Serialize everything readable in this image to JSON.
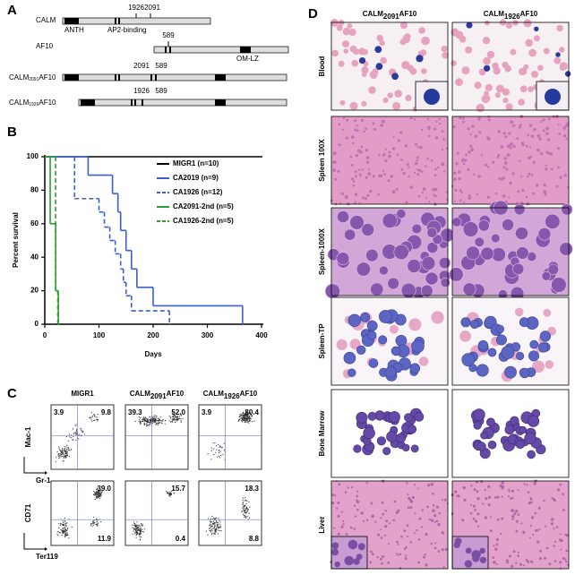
{
  "panel_a": {
    "label": "A",
    "calm": {
      "name": "CALM",
      "domains": [
        "ANTH",
        "AP2-binding"
      ],
      "breakpoints": [
        "1926",
        "2091"
      ]
    },
    "af10": {
      "name": "AF10",
      "breakpoint": "589",
      "domain": "OM-LZ"
    },
    "fusions": [
      {
        "name": {
          "base": "CALM",
          "sub": "2091",
          "tail": "AF10"
        },
        "breakpoints": [
          "2091",
          "589"
        ]
      },
      {
        "name": {
          "base": "CALM",
          "sub": "1926",
          "tail": "AF10"
        },
        "breakpoints": [
          "1926",
          "589"
        ]
      }
    ]
  },
  "chart_data": {
    "type": "step",
    "label": "B",
    "y_label": "Percent survival",
    "x_label": "Days",
    "xlim": [
      0,
      400
    ],
    "ylim": [
      0,
      100
    ],
    "xticks": [
      0,
      100,
      200,
      300,
      400
    ],
    "yticks": [
      0,
      20,
      40,
      60,
      80,
      100
    ],
    "series": [
      {
        "name": "MIGR1 (n=10)",
        "color": "#000000",
        "dash": false,
        "x": [
          0,
          400
        ],
        "values": [
          100,
          100
        ]
      },
      {
        "name": "CA2019 (n=9)",
        "color": "#3a5fcd",
        "dash": false,
        "x": [
          0,
          80,
          125,
          135,
          140,
          150,
          160,
          170,
          200,
          365
        ],
        "values": [
          100,
          89,
          78,
          67,
          56,
          44,
          33,
          22,
          11,
          0
        ]
      },
      {
        "name": "CA1926 (n=12)",
        "color": "#3a5fcd",
        "dash": true,
        "x": [
          0,
          55,
          100,
          110,
          120,
          130,
          140,
          145,
          150,
          160,
          230
        ],
        "values": [
          100,
          75,
          67,
          58,
          50,
          42,
          33,
          25,
          17,
          8,
          0
        ]
      },
      {
        "name": "CA2091-2nd (n=5)",
        "color": "#2ca02c",
        "dash": false,
        "x": [
          0,
          10,
          20,
          25
        ],
        "values": [
          100,
          60,
          20,
          0
        ]
      },
      {
        "name": "CA1926-2nd (n=5)",
        "color": "#2ca02c",
        "dash": true,
        "x": [
          0,
          20,
          24
        ],
        "values": [
          100,
          20,
          0
        ]
      }
    ]
  },
  "panel_c": {
    "label": "C",
    "columns": [
      {
        "base": "MIGR1"
      },
      {
        "base": "CALM",
        "sub": "2091",
        "tail": "AF10"
      },
      {
        "base": "CALM",
        "sub": "1926",
        "tail": "AF10"
      }
    ],
    "rows": [
      {
        "y_label": "Mac-1",
        "x_label": "Gr-1",
        "quadrants": [
          {
            "ul": "3.9",
            "ur": "9.8"
          },
          {
            "ul": "39.3",
            "ur": "52.0"
          },
          {
            "ul": "3.9",
            "ur": "80.4"
          }
        ]
      },
      {
        "y_label": "CD71",
        "x_label": "Ter119",
        "quadrants": [
          {
            "ur": "39.0",
            "lr": "11.9"
          },
          {
            "ur": "15.7",
            "lr": "0.4"
          },
          {
            "ur": "18.3",
            "lr": "8.8"
          }
        ]
      }
    ]
  },
  "panel_d": {
    "label": "D",
    "columns": [
      {
        "base": "CALM",
        "sub": "2091",
        "tail": "AF10"
      },
      {
        "base": "CALM",
        "sub": "1926",
        "tail": "AF10"
      }
    ],
    "rows": [
      "Blood",
      "Spleen 100X",
      "Spleen-1000X",
      "Spleen-TP",
      "Bone Marrow",
      "Liver"
    ]
  }
}
